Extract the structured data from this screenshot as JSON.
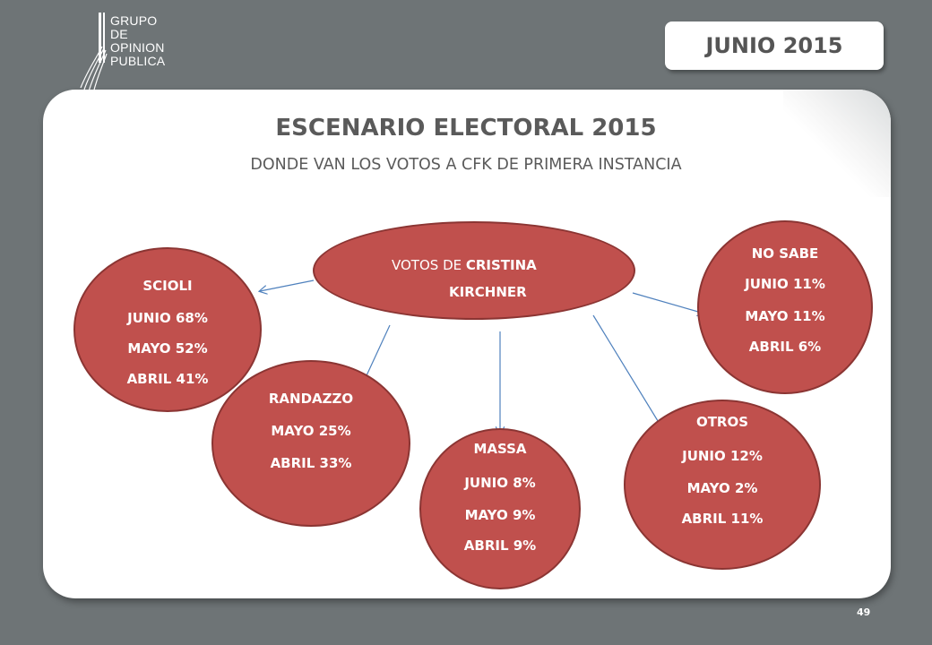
{
  "logo": {
    "lines": [
      "GRUPO",
      "DE",
      "OPINION",
      "PUBLICA"
    ]
  },
  "header": {
    "date_badge": "JUNIO 2015"
  },
  "slide": {
    "title": "ESCENARIO ELECTORAL 2015",
    "subtitle": "DONDE VAN LOS VOTOS A CFK DE PRIMERA INSTANCIA"
  },
  "diagram": {
    "center": {
      "prefix": "VOTOS DE ",
      "name_bold": "CRISTINA",
      "line2": "KIRCHNER"
    },
    "nodes": [
      {
        "id": "scioli",
        "lines": [
          "SCIOLI",
          "JUNIO 68%",
          "MAYO 52%",
          "ABRIL 41%"
        ]
      },
      {
        "id": "randazzo",
        "lines": [
          "RANDAZZO",
          "MAYO 25%",
          "ABRIL  33%"
        ]
      },
      {
        "id": "massa",
        "lines": [
          "MASSA",
          "JUNIO 8%",
          "MAYO 9%",
          "ABRIL 9%"
        ]
      },
      {
        "id": "otros",
        "lines": [
          "OTROS",
          "JUNIO 12%",
          "MAYO 2%",
          "ABRIL 11%"
        ]
      },
      {
        "id": "nosabe",
        "lines": [
          "NO SABE",
          "JUNIO 11%",
          "MAYO 11%",
          "ABRIL 6%"
        ]
      }
    ],
    "colors": {
      "node_fill": "#c0504d",
      "node_border": "#8b3533",
      "arrow": "#4f81bd"
    }
  },
  "footer": {
    "page_number": "49"
  }
}
